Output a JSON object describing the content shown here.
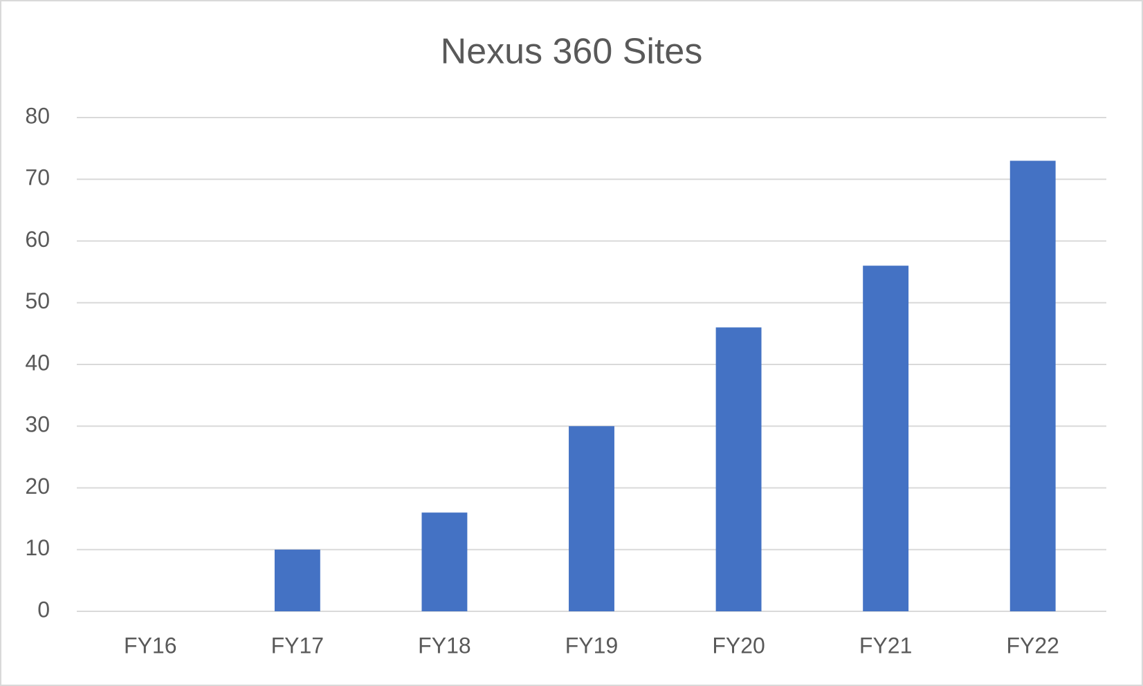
{
  "chart_data": {
    "type": "bar",
    "title": "Nexus 360 Sites",
    "categories": [
      "FY16",
      "FY17",
      "FY18",
      "FY19",
      "FY20",
      "FY21",
      "FY22"
    ],
    "values": [
      0,
      10,
      16,
      30,
      46,
      56,
      73
    ],
    "color": "#4472c4",
    "ylim": [
      0,
      80
    ],
    "yticks": [
      0,
      10,
      20,
      30,
      40,
      50,
      60,
      70,
      80
    ],
    "grid": true
  }
}
